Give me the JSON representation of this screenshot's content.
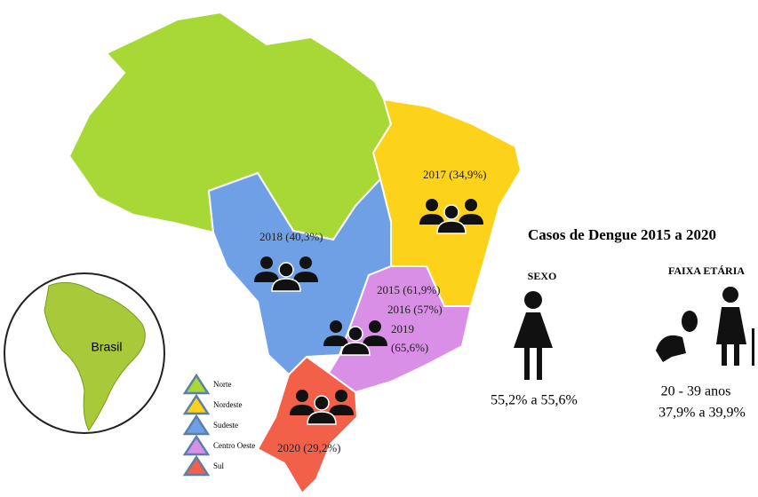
{
  "map": {
    "labels": [
      "2017 (34,9%)",
      "2018 (40,3%)",
      "2015 (61,9%)",
      "2016 (57%)",
      "2019",
      "(65,6%)",
      "2020 (29,2%)"
    ],
    "inset_label": "Brasil",
    "legend": [
      {
        "label": "Norte",
        "color": "#a8d836"
      },
      {
        "label": "Nordeste",
        "color": "#fdd21a"
      },
      {
        "label": "Sudeste",
        "color": "#6fa0e6"
      },
      {
        "label": "Centro Oeste",
        "color": "#d98fe6"
      },
      {
        "label": "Sul",
        "color": "#f2604a"
      }
    ]
  },
  "infographic": {
    "title": "Casos de Dengue 2015 a 2020",
    "sexo": {
      "heading": "SEXO",
      "value": "55,2% a 55,6%"
    },
    "faixa": {
      "heading": "FAIXA ETÁRIA",
      "range": "20 - 39 anos",
      "value": "37,9% a 39,9%"
    }
  }
}
